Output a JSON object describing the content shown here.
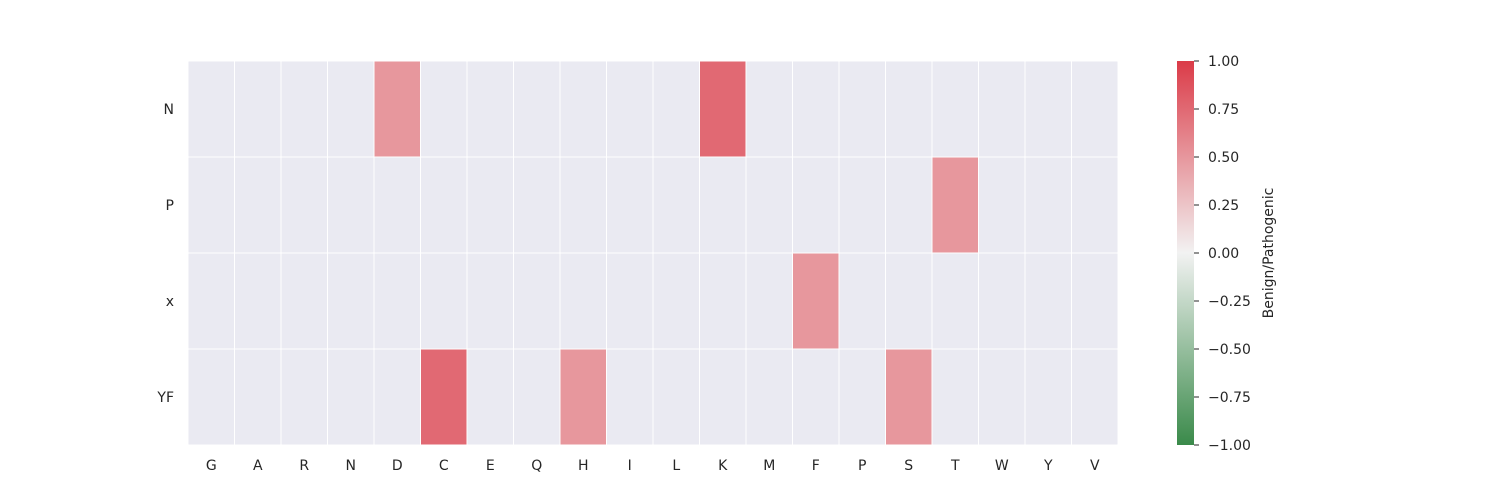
{
  "chart_data": {
    "type": "heatmap",
    "title": "",
    "xlabel": "",
    "ylabel": "",
    "x_categories": [
      "G",
      "A",
      "R",
      "N",
      "D",
      "C",
      "E",
      "Q",
      "H",
      "I",
      "L",
      "K",
      "M",
      "F",
      "P",
      "S",
      "T",
      "W",
      "Y",
      "V"
    ],
    "y_categories": [
      "N",
      "P",
      "x",
      "YF"
    ],
    "values": [
      [
        0,
        0,
        0,
        0,
        0.5,
        0,
        0,
        0,
        0,
        0,
        0,
        0.75,
        0,
        0,
        0,
        0,
        0,
        0,
        0,
        0
      ],
      [
        0,
        0,
        0,
        0,
        0,
        0,
        0,
        0,
        0,
        0,
        0,
        0,
        0,
        0,
        0,
        0,
        0.5,
        0,
        0,
        0
      ],
      [
        0,
        0,
        0,
        0,
        0,
        0,
        0,
        0,
        0,
        0,
        0,
        0,
        0,
        0.5,
        0,
        0,
        0,
        0,
        0,
        0
      ],
      [
        0,
        0,
        0,
        0,
        0,
        0.75,
        0,
        0,
        0.5,
        0,
        0,
        0,
        0,
        0,
        0,
        0.5,
        0,
        0,
        0,
        0
      ]
    ],
    "zero_cell_color": "#eaeaf2",
    "colorbar": {
      "label": "Benign/Pathogenic",
      "range": [
        -1,
        1
      ],
      "ticks": [
        1.0,
        0.75,
        0.5,
        0.25,
        0.0,
        -0.25,
        -0.5,
        -0.75,
        -1.0
      ],
      "tick_labels": [
        "1.00",
        "0.75",
        "0.50",
        "0.25",
        "0.00",
        "−0.25",
        "−0.50",
        "−0.75",
        "−1.00"
      ],
      "colormap": {
        "low": "#3a8a4a",
        "mid": "#f2f2f2",
        "high": "#db3b48"
      }
    },
    "grid": true
  }
}
